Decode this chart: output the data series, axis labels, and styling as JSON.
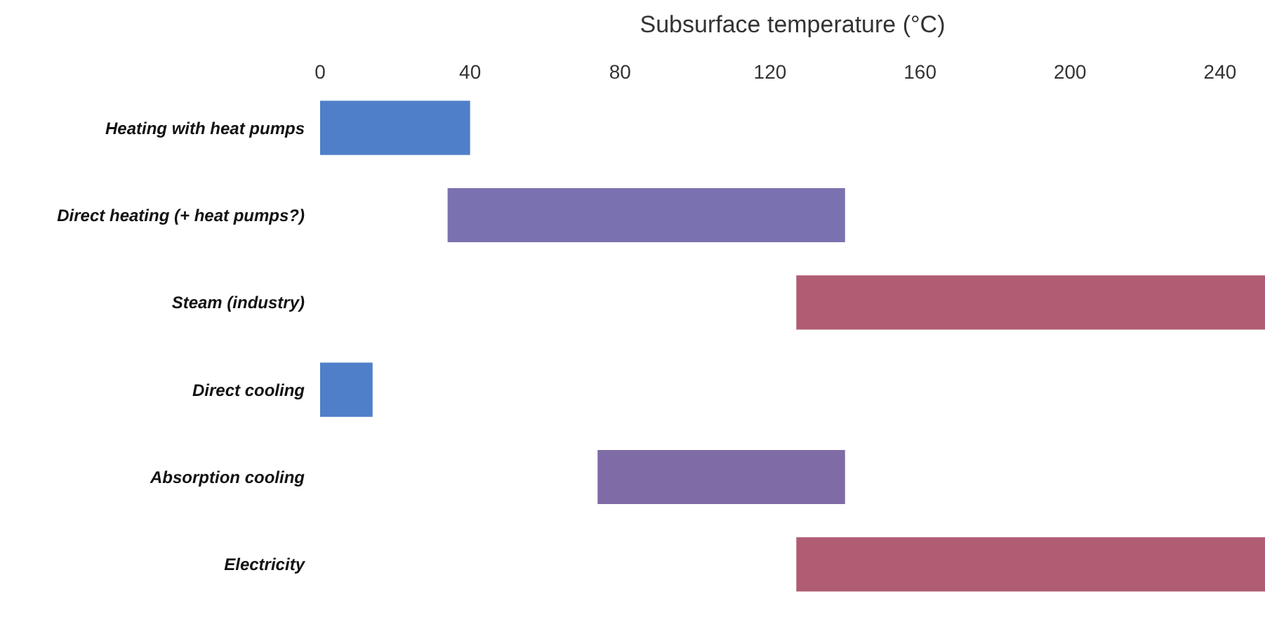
{
  "chart_data": {
    "type": "bar",
    "orientation": "horizontal",
    "xlabel": "Subsurface temperature (°C)",
    "categories": [
      "Heating with heat pumps",
      "Direct heating (+ heat pumps?)",
      "Steam (industry)",
      "Direct cooling",
      "Absorption cooling",
      "Electricity"
    ],
    "base": [
      0,
      34,
      127,
      0,
      74,
      127
    ],
    "values": [
      40,
      106,
      125,
      14,
      66,
      125
    ],
    "colors": [
      "#4f7fc8",
      "#7a72b0",
      "#b05c72",
      "#4f7fc8",
      "#7f6ca6",
      "#b05c72"
    ],
    "xlim": [
      0,
      252
    ],
    "xticks": [
      0,
      40,
      80,
      120,
      160,
      200,
      240
    ]
  }
}
